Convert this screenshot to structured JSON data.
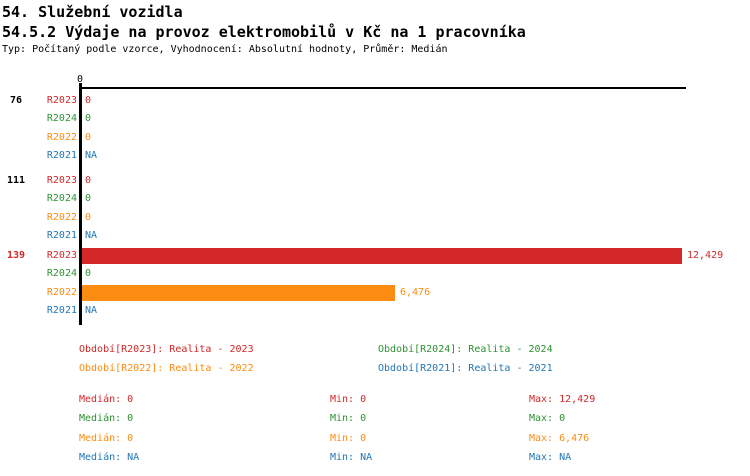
{
  "chart_data": {
    "type": "bar",
    "orientation": "horizontal",
    "title": "54. Služební vozidla",
    "subtitle": "54.5.2 Výdaje na provoz elektromobilů v Kč na 1 pracovníka",
    "annotation": "Typ: Počítaný podle vzorce, Vyhodnocení: Absolutní hodnoty, Průměr: Medián",
    "axis": {
      "tick_label": "0",
      "xlim": [
        0,
        12429
      ],
      "grid": false
    },
    "groups": [
      "76",
      "111",
      "139"
    ],
    "group_label_colors": [
      "#000000",
      "#000000",
      "#D22828"
    ],
    "na_text": "NA",
    "series": [
      {
        "name": "R2023",
        "legend": "Realita - 2023",
        "color": "#D22828",
        "values": [
          0,
          0,
          12429
        ]
      },
      {
        "name": "R2024",
        "legend": "Realita - 2024",
        "color": "#2E9132",
        "values": [
          0,
          0,
          0
        ]
      },
      {
        "name": "R2022",
        "legend": "Realita - 2022",
        "color": "#FC8C12",
        "values": [
          0,
          0,
          6476
        ]
      },
      {
        "name": "R2021",
        "legend": "Realita - 2021",
        "color": "#2277B4",
        "values": [
          null,
          null,
          null
        ]
      }
    ],
    "legend_position": "bottom",
    "legend_items": [
      {
        "text": "Období[R2023]: Realita - 2023",
        "color": "#D22828"
      },
      {
        "text": "Období[R2024]: Realita - 2024",
        "color": "#2E9132"
      },
      {
        "text": "Období[R2022]: Realita - 2022",
        "color": "#FC8C12"
      },
      {
        "text": "Období[R2021]: Realita - 2021",
        "color": "#2277B4"
      }
    ],
    "stats": {
      "labels": {
        "median": "Medián",
        "min": "Min",
        "max": "Max"
      },
      "rows": [
        {
          "series": "R2023",
          "color": "#D22828",
          "median": "0",
          "min": "0",
          "max": "12,429"
        },
        {
          "series": "R2024",
          "color": "#2E9132",
          "median": "0",
          "min": "0",
          "max": "0"
        },
        {
          "series": "R2022",
          "color": "#FC8C12",
          "median": "0",
          "min": "0",
          "max": "6,476"
        },
        {
          "series": "R2021",
          "color": "#2277B4",
          "median": "NA",
          "min": "NA",
          "max": "NA"
        }
      ]
    }
  }
}
